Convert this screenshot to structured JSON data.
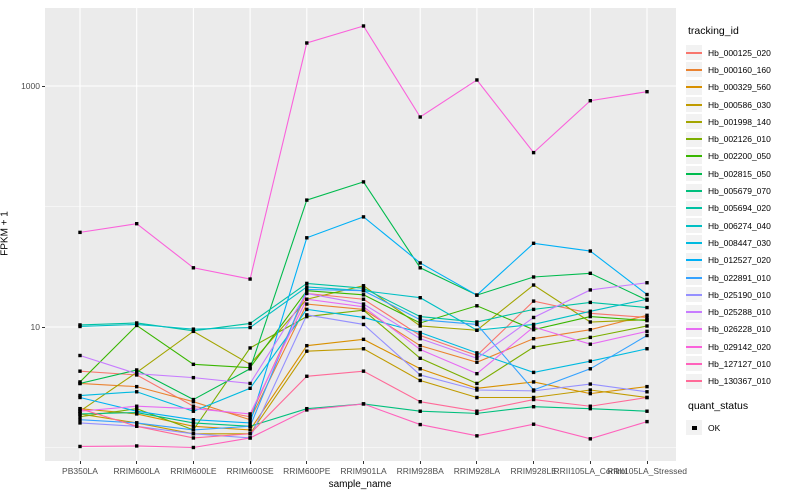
{
  "chart_data": {
    "type": "line",
    "title": "",
    "xlabel": "sample_name",
    "ylabel": "FPKM + 1",
    "y_scale": "log10",
    "y_major_tick_labels": [
      "10",
      "1000"
    ],
    "y_major_values": [
      10,
      1000
    ],
    "y_minor_values": [
      1,
      100
    ],
    "ylim": [
      0.85,
      4500
    ],
    "grid": true,
    "panel_bg": "#EBEBEB",
    "grid_color": "#FFFFFF",
    "point_color": "#000000",
    "point_shape": "filled-square",
    "legend_position": "right",
    "categories": [
      "PB350LA",
      "RRIM600LA",
      "RRIM600LE",
      "RRIM600SE",
      "RRIM600PE",
      "RRIM901LA",
      "RRIM928BA",
      "RRIM928LA",
      "RRIM928LE",
      "RRII105LA_Control",
      "RRII105LA_Stressed"
    ],
    "legend_title": "tracking_id",
    "series": [
      {
        "name": "Hb_000125_020",
        "color": "#F8766D",
        "values": [
          4.3,
          4.0,
          2.2,
          1.8,
          19,
          17,
          8.5,
          5.8,
          16.4,
          13.0,
          12.0
        ]
      },
      {
        "name": "Hb_000160_160",
        "color": "#EA8331",
        "values": [
          3.4,
          3.2,
          2.4,
          1.7,
          15.5,
          14,
          7.0,
          5.1,
          8.0,
          9.5,
          12.5
        ]
      },
      {
        "name": "Hb_000329_560",
        "color": "#D89000",
        "values": [
          2.1,
          1.9,
          1.5,
          1.4,
          7.0,
          7.9,
          4.5,
          3.1,
          3.5,
          2.8,
          3.2
        ]
      },
      {
        "name": "Hb_000586_030",
        "color": "#C09B00",
        "values": [
          1.9,
          1.6,
          1.3,
          1.3,
          6.3,
          6.6,
          3.6,
          2.6,
          2.6,
          3.0,
          2.6
        ]
      },
      {
        "name": "Hb_001998_140",
        "color": "#A3A500",
        "values": [
          2.0,
          4.2,
          9.2,
          4.9,
          17,
          22,
          10.2,
          9.4,
          22.3,
          11.0,
          11.5
        ]
      },
      {
        "name": "Hb_002126_010",
        "color": "#7CAE00",
        "values": [
          1.8,
          2.1,
          1.4,
          6.7,
          12.2,
          13.8,
          5.5,
          3.4,
          6.8,
          8.2,
          10.2
        ]
      },
      {
        "name": "Hb_002200_050",
        "color": "#39B600",
        "values": [
          3.5,
          10.3,
          4.9,
          4.6,
          20,
          18.5,
          10.8,
          15.0,
          9.5,
          12.2,
          11.3
        ]
      },
      {
        "name": "Hb_002815_050",
        "color": "#00BB4E",
        "values": [
          3.4,
          4.4,
          2.5,
          4.5,
          113,
          160,
          31,
          18.4,
          26,
          27.9,
          16.7
        ]
      },
      {
        "name": "Hb_005679_070",
        "color": "#00BF7D",
        "values": [
          1.9,
          1.95,
          1.6,
          1.5,
          2.1,
          2.3,
          2.0,
          1.92,
          2.18,
          2.1,
          2.0
        ]
      },
      {
        "name": "Hb_005694_020",
        "color": "#00C1A3",
        "values": [
          10.4,
          10.8,
          9.3,
          10.7,
          23,
          21,
          12.2,
          11.0,
          14.0,
          16.0,
          14.5
        ]
      },
      {
        "name": "Hb_006274_040",
        "color": "#00BFC4",
        "values": [
          10.1,
          10.5,
          9.6,
          9.9,
          21.5,
          20,
          17.5,
          9.4,
          10.5,
          13.5,
          17.0
        ]
      },
      {
        "name": "Hb_008447_030",
        "color": "#00BAE0",
        "values": [
          2.7,
          2.9,
          2.0,
          3.1,
          14,
          12,
          9.0,
          6.1,
          4.2,
          5.2,
          6.6
        ]
      },
      {
        "name": "Hb_012527_020",
        "color": "#00B0F6",
        "values": [
          2.6,
          2.0,
          1.7,
          1.6,
          55,
          82,
          34,
          18.4,
          49.5,
          42.7,
          18.6
        ]
      },
      {
        "name": "Hb_022891_010",
        "color": "#35A2FF",
        "values": [
          1.7,
          1.6,
          1.4,
          1.5,
          20.5,
          20,
          11.5,
          10.5,
          3.0,
          4.5,
          8.5
        ]
      },
      {
        "name": "Hb_025190_010",
        "color": "#9590FF",
        "values": [
          1.6,
          1.5,
          1.3,
          1.2,
          12.6,
          10.5,
          4.0,
          3.0,
          2.95,
          3.36,
          2.9
        ]
      },
      {
        "name": "Hb_025288_010",
        "color": "#C77CFF",
        "values": [
          5.8,
          4.1,
          3.8,
          3.4,
          19,
          15.5,
          8.0,
          5.5,
          12.0,
          20.3,
          23.3
        ]
      },
      {
        "name": "Hb_026228_010",
        "color": "#E76BF3",
        "values": [
          2.0,
          2.2,
          2.1,
          1.9,
          17,
          14.7,
          6.5,
          4.1,
          10.0,
          7.2,
          9.2
        ]
      },
      {
        "name": "Hb_029142_020",
        "color": "#FA62DB",
        "values": [
          61,
          72,
          31,
          25,
          2275,
          3148,
          553,
          1122,
          280,
          755,
          897
        ]
      },
      {
        "name": "Hb_127127_010",
        "color": "#FF62BC",
        "values": [
          1.02,
          1.03,
          1.0,
          1.2,
          2.05,
          2.3,
          1.55,
          1.25,
          1.56,
          1.18,
          1.64
        ]
      },
      {
        "name": "Hb_130367_010",
        "color": "#FF6A98",
        "values": [
          2.1,
          1.5,
          1.2,
          1.3,
          3.9,
          4.3,
          2.4,
          2.0,
          2.5,
          2.2,
          2.6
        ]
      }
    ],
    "legend2_title": "quant_status",
    "legend2_items": [
      {
        "label": "OK"
      }
    ]
  }
}
